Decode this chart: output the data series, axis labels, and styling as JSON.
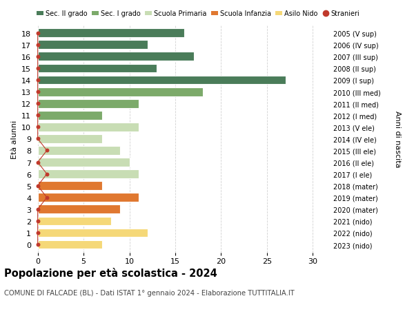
{
  "ages": [
    18,
    17,
    16,
    15,
    14,
    13,
    12,
    11,
    10,
    9,
    8,
    7,
    6,
    5,
    4,
    3,
    2,
    1,
    0
  ],
  "years": [
    "2005 (V sup)",
    "2006 (IV sup)",
    "2007 (III sup)",
    "2008 (II sup)",
    "2009 (I sup)",
    "2010 (III med)",
    "2011 (II med)",
    "2012 (I med)",
    "2013 (V ele)",
    "2014 (IV ele)",
    "2015 (III ele)",
    "2016 (II ele)",
    "2017 (I ele)",
    "2018 (mater)",
    "2019 (mater)",
    "2020 (mater)",
    "2021 (nido)",
    "2022 (nido)",
    "2023 (nido)"
  ],
  "values": [
    16,
    12,
    17,
    13,
    27,
    18,
    11,
    7,
    11,
    7,
    9,
    10,
    11,
    7,
    11,
    9,
    8,
    12,
    7
  ],
  "stranieri": [
    0,
    0,
    0,
    0,
    0,
    0,
    0,
    0,
    0,
    0,
    1,
    0,
    1,
    0,
    1,
    0,
    0,
    0,
    0
  ],
  "colors": {
    "sec2": "#4a7c59",
    "sec1": "#7caa6a",
    "primaria": "#c8ddb4",
    "infanzia": "#e07830",
    "nido": "#f5d878",
    "stranieri_color": "#c0392b",
    "stranieri_line": "#c0392b"
  },
  "bar_colors": [
    "sec2",
    "sec2",
    "sec2",
    "sec2",
    "sec2",
    "sec1",
    "sec1",
    "sec1",
    "primaria",
    "primaria",
    "primaria",
    "primaria",
    "primaria",
    "infanzia",
    "infanzia",
    "infanzia",
    "nido",
    "nido",
    "nido"
  ],
  "legend_labels": [
    "Sec. II grado",
    "Sec. I grado",
    "Scuola Primaria",
    "Scuola Infanzia",
    "Asilo Nido",
    "Stranieri"
  ],
  "legend_colors": [
    "#4a7c59",
    "#7caa6a",
    "#c8ddb4",
    "#e07830",
    "#f5d878",
    "#c0392b"
  ],
  "ylabel": "Età alunni",
  "ylabel_right": "Anni di nascita",
  "title": "Popolazione per età scolastica - 2024",
  "subtitle": "COMUNE DI FALCADE (BL) - Dati ISTAT 1° gennaio 2024 - Elaborazione TUTTITALIA.IT",
  "xlim": [
    -0.5,
    32
  ],
  "xticks": [
    0,
    5,
    10,
    15,
    20,
    25,
    30
  ],
  "background_color": "#ffffff",
  "grid_color": "#cccccc"
}
